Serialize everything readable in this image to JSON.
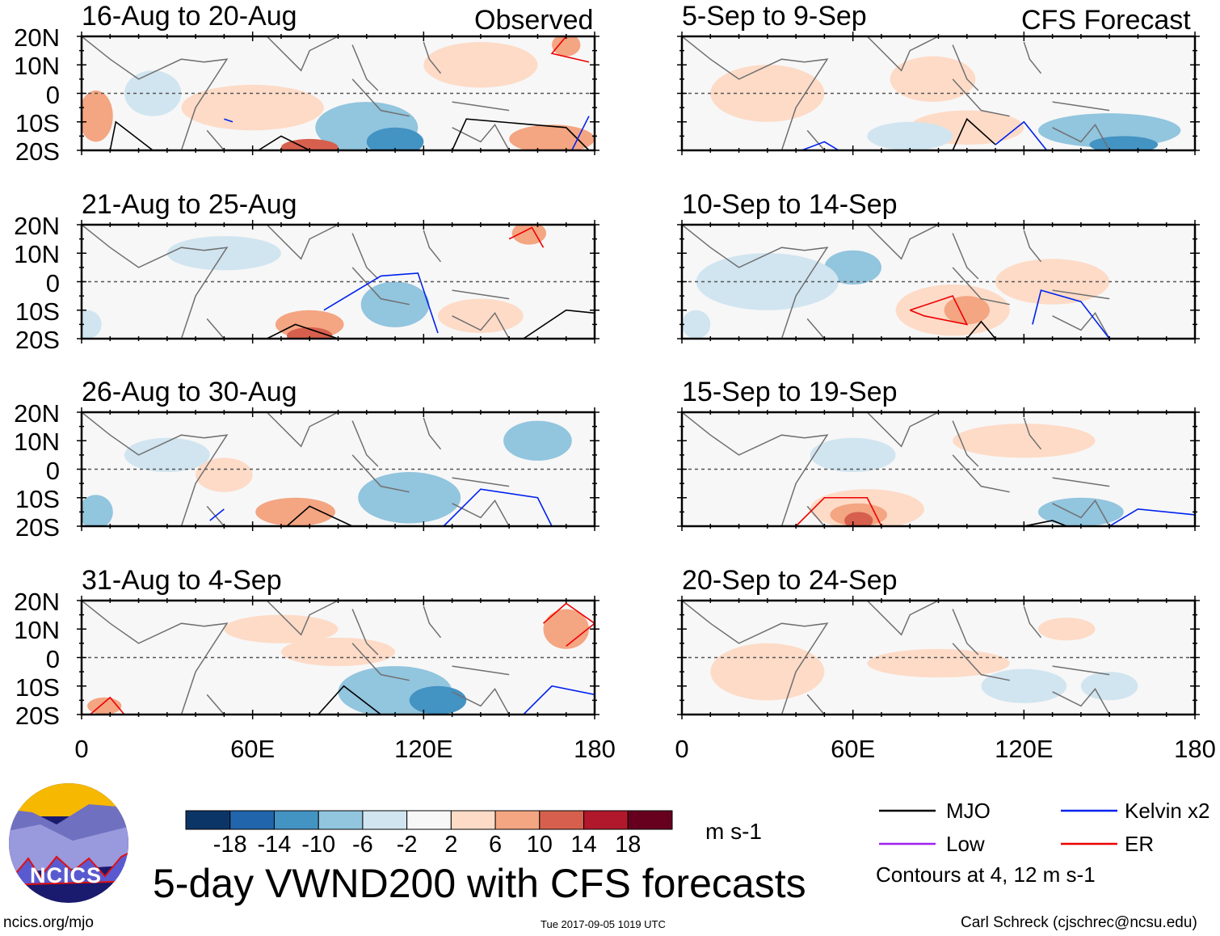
{
  "headers": {
    "left": "Observed",
    "right": "CFS Forecast"
  },
  "colors": {
    "bins": [
      "#0b3566",
      "#2166ac",
      "#4393c3",
      "#92c5de",
      "#d1e5f0",
      "#f7f7f7",
      "#fddbc7",
      "#f4a582",
      "#d6604d",
      "#b2182b",
      "#67001f"
    ],
    "mjo": "#000000",
    "kelvin": "#0022ee",
    "low": "#a020f0",
    "er": "#ee0000",
    "coast": "#707070"
  },
  "chart_data": {
    "type": "heatmap",
    "title": "5-day VWND200 with CFS forecasts",
    "panels": [
      {
        "title": "16-Aug to 20-Aug",
        "column": "Observed"
      },
      {
        "title": "21-Aug to 25-Aug",
        "column": "Observed"
      },
      {
        "title": "26-Aug to 30-Aug",
        "column": "Observed"
      },
      {
        "title": "31-Aug to 4-Sep",
        "column": "Observed"
      },
      {
        "title": "5-Sep to 9-Sep",
        "column": "CFS Forecast"
      },
      {
        "title": "10-Sep to 14-Sep",
        "column": "CFS Forecast"
      },
      {
        "title": "15-Sep to 19-Sep",
        "column": "CFS Forecast"
      },
      {
        "title": "20-Sep to 24-Sep",
        "column": "CFS Forecast"
      }
    ],
    "lat_ticks": [
      "20N",
      "10N",
      "0",
      "10S",
      "20S"
    ],
    "lon_ticks": [
      "0",
      "60E",
      "120E",
      "180"
    ],
    "xlim": [
      0,
      180
    ],
    "ylim": [
      -20,
      20
    ],
    "colorbar": {
      "ticks": [
        "-18",
        "-14",
        "-10",
        "-6",
        "-2",
        "2",
        "6",
        "10",
        "14",
        "18"
      ],
      "units": "m s-1"
    },
    "legend": [
      {
        "label": "MJO",
        "color": "#000000"
      },
      {
        "label": "Kelvin x2",
        "color": "#0022ee"
      },
      {
        "label": "Low",
        "color": "#a020f0"
      },
      {
        "label": "ER",
        "color": "#ee0000"
      }
    ],
    "contour_note": "Contours at 4, 12 m s-1"
  },
  "footer": {
    "url": "ncics.org/mjo",
    "timestamp": "Tue 2017-09-05 1019 UTC",
    "author": "Carl Schreck (cjschrec@ncsu.edu)",
    "logo_text": "NCICS"
  }
}
